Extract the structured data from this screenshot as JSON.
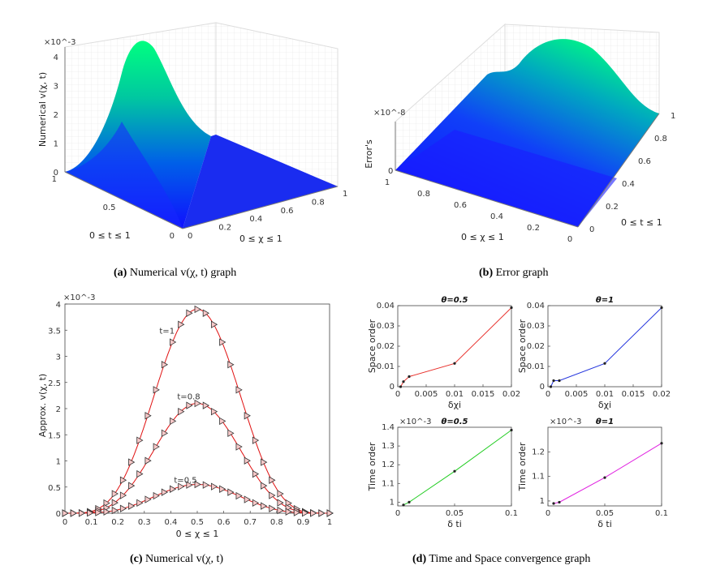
{
  "captions": {
    "a_label": "(a)",
    "a_text": "Numerical v(χ, t) graph",
    "b_label": "(b)",
    "b_text": "Error graph",
    "c_label": "(c)",
    "c_text": "Numerical v(χ, t)",
    "d_label": "(d)",
    "d_text": "Time and Space convergence graph"
  },
  "chart_data": [
    {
      "id": "a",
      "type": "surface3d",
      "title": "",
      "zlabel": "Numerical v(χ, t)",
      "xlabel": "0 ≤ χ ≤ 1",
      "ylabel": "0 ≤ t ≤ 1",
      "zscale": "×10^-3",
      "zticks": [
        "0",
        "1",
        "2",
        "3",
        "4"
      ],
      "xticks": [
        "0",
        "0.2",
        "0.4",
        "0.6",
        "0.8",
        "1"
      ],
      "yticks": [
        "0",
        "0.5",
        "1"
      ],
      "zrange": [
        0,
        4
      ],
      "peak": {
        "chi": 0.5,
        "t": 1,
        "value": 3.9
      },
      "colormap": "winter"
    },
    {
      "id": "b",
      "type": "surface3d",
      "zlabel": "Error's",
      "xlabel": "0 ≤ χ ≤ 1",
      "ylabel": "0 ≤ t ≤ 1",
      "zscale": "×10^-8",
      "xticks": [
        "1",
        "0.8",
        "0.6",
        "0.4",
        "0.2",
        "0"
      ],
      "yticks": [
        "0",
        "0.2",
        "0.4",
        "0.6",
        "0.8",
        "1"
      ],
      "zticks": [
        "0"
      ],
      "colormap": "winter"
    },
    {
      "id": "c",
      "type": "line",
      "ylabel": "Approx. v(χ, t)",
      "xlabel": "0 ≤ χ ≤ 1",
      "yscale": "×10^-3",
      "xlim": [
        0,
        1
      ],
      "ylim": [
        0,
        4
      ],
      "xticks": [
        "0",
        "0.1",
        "0.2",
        "0.3",
        "0.4",
        "0.5",
        "0.6",
        "0.7",
        "0.8",
        "0.9",
        "1"
      ],
      "yticks": [
        "0",
        "0.5",
        "1",
        "1.5",
        "2",
        "2.5",
        "3",
        "3.5",
        "4"
      ],
      "series": [
        {
          "name": "t=1",
          "peak": 3.9
        },
        {
          "name": "t=0.8",
          "peak": 2.1
        },
        {
          "name": "t=0.5",
          "peak": 0.55
        }
      ],
      "markers": "triangle-right",
      "marker_count": 33
    },
    {
      "id": "d1",
      "type": "line",
      "title": "θ=0.5",
      "xlabel": "δχi",
      "ylabel": "Space order",
      "color": "#e8312c",
      "x": [
        0.0005,
        0.001,
        0.002,
        0.01,
        0.02
      ],
      "y": [
        0.0,
        0.0025,
        0.005,
        0.0115,
        0.039
      ],
      "xlim": [
        0,
        0.02
      ],
      "ylim": [
        0,
        0.04
      ],
      "xticks": [
        "0",
        "0.005",
        "0.01",
        "0.015",
        "0.02"
      ],
      "yticks": [
        "0",
        "0.01",
        "0.02",
        "0.03",
        "0.04"
      ]
    },
    {
      "id": "d2",
      "type": "line",
      "title": "θ=1",
      "xlabel": "δχi",
      "ylabel": "Space order",
      "color": "#2233dd",
      "x": [
        0.0005,
        0.001,
        0.002,
        0.01,
        0.02
      ],
      "y": [
        0.0,
        0.003,
        0.003,
        0.0115,
        0.039
      ],
      "xlim": [
        0,
        0.02
      ],
      "ylim": [
        0,
        0.04
      ],
      "xticks": [
        "0",
        "0.005",
        "0.01",
        "0.015",
        "0.02"
      ],
      "yticks": [
        "0",
        "0.01",
        "0.02",
        "0.03",
        "0.04"
      ]
    },
    {
      "id": "d3",
      "type": "line",
      "title": "θ=0.5",
      "xlabel": "δ ti",
      "ylabel": "Time order",
      "color": "#22cc22",
      "yscale": "×10^-3",
      "x": [
        0.005,
        0.01,
        0.05,
        0.1
      ],
      "y": [
        0.985,
        1.0,
        1.165,
        1.385
      ],
      "xlim": [
        0,
        0.1
      ],
      "ylim": [
        0.98,
        1.4
      ],
      "xticks": [
        "0",
        "0.05",
        "0.1"
      ],
      "yticks": [
        "1",
        "1.1",
        "1.2",
        "1.3",
        "1.4"
      ]
    },
    {
      "id": "d4",
      "type": "line",
      "title": "θ=1",
      "xlabel": "δ ti",
      "ylabel": "Time order",
      "color": "#e020e0",
      "yscale": "×10^-3",
      "x": [
        0.005,
        0.01,
        0.05,
        0.1
      ],
      "y": [
        0.99,
        0.995,
        1.095,
        1.235
      ],
      "xlim": [
        0,
        0.1
      ],
      "ylim": [
        0.98,
        1.3
      ],
      "xticks": [
        "0",
        "0.05",
        "0.1"
      ],
      "yticks": [
        "1",
        "1.1",
        "1.2"
      ]
    }
  ]
}
